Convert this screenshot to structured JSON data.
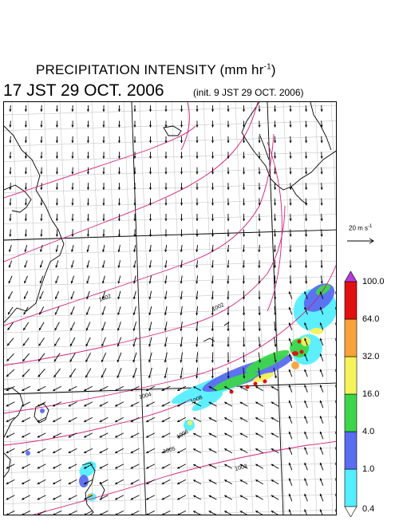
{
  "title": {
    "line1_main": "PRECIPITATION INTENSITY (mm hr",
    "line1_sup": "-1",
    "line1_end": ")",
    "time": "17 JST 29 OCT. 2006",
    "init": "(init. 9 JST 29 OCT. 2006)"
  },
  "reference_vector": {
    "label_main": "20 m s",
    "label_sup": "-1"
  },
  "colorbar": {
    "colors": [
      "#55eeff",
      "#5a6cf0",
      "#3dd64a",
      "#f6f25a",
      "#f9a23a",
      "#e01010",
      "#b63cd8"
    ],
    "labels": [
      "0.4",
      "1.0",
      "4.0",
      "16.0",
      "32.0",
      "64.0",
      "100.0"
    ]
  },
  "isobars": {
    "color": "#d0207a",
    "labels": [
      "1002",
      "1002",
      "1004",
      "1005",
      "1006",
      "1003",
      "1008"
    ]
  },
  "map": {
    "coast_color": "#000000",
    "grid_color": "#bbbbbb",
    "arrow_color": "#000000"
  }
}
